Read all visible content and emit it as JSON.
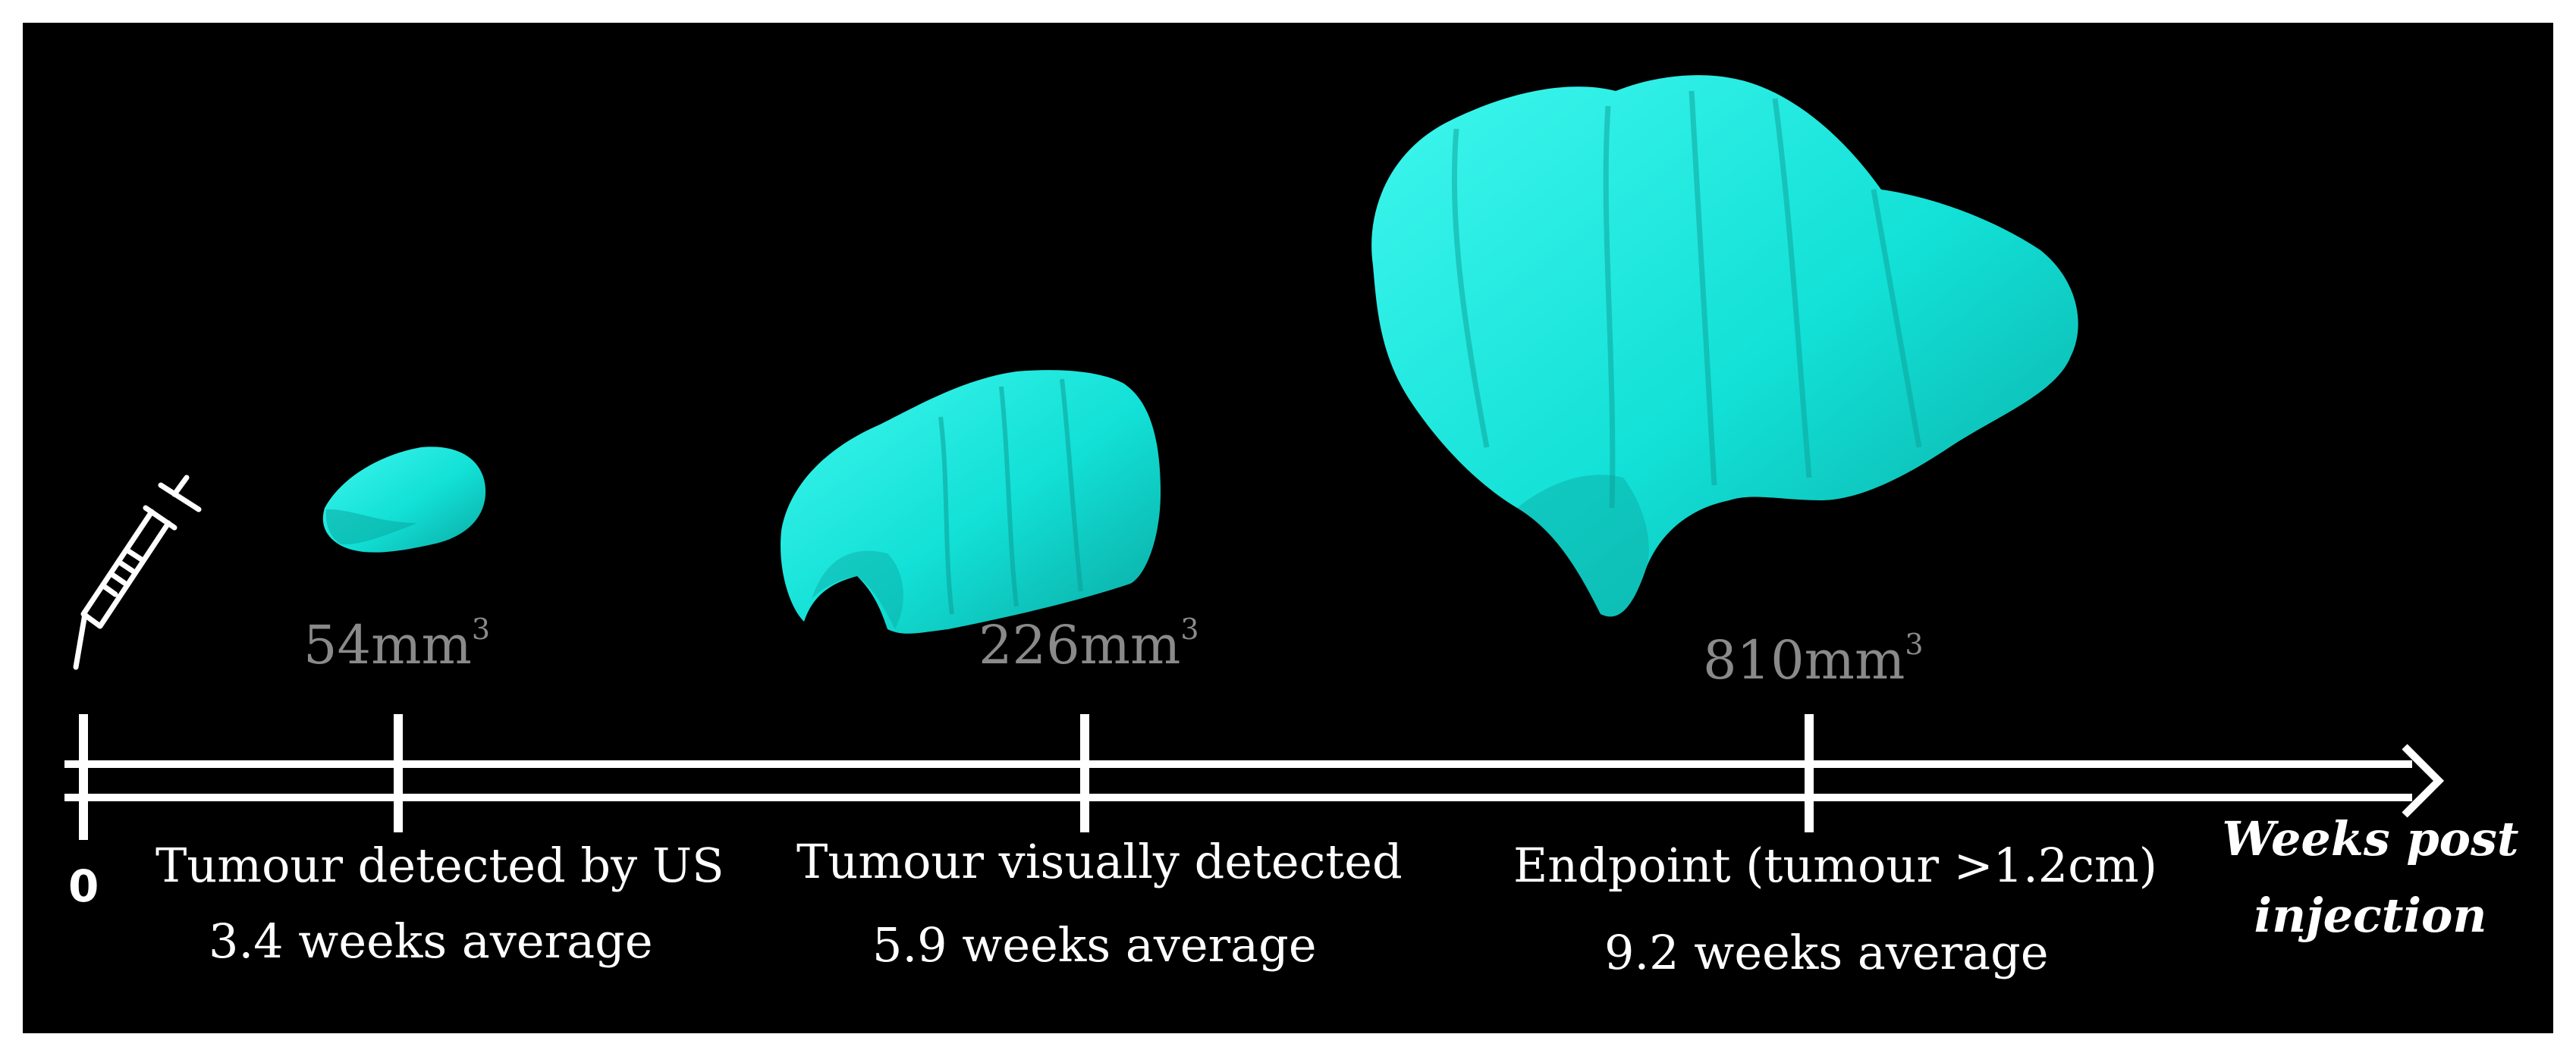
{
  "timeline": {
    "origin_label": "0",
    "axis_label_line1": "Weeks post",
    "axis_label_line2": "injection"
  },
  "stages": [
    {
      "volume": "54mm",
      "volume_sup": "3",
      "event": "Tumour detected by US",
      "timing": "3.4 weeks average"
    },
    {
      "volume": "226mm",
      "volume_sup": "3",
      "event": "Tumour visually detected",
      "timing": "5.9 weeks average"
    },
    {
      "volume": "810mm",
      "volume_sup": "3",
      "event": "Endpoint (tumour >1.2cm)",
      "timing": "9.2 weeks average"
    }
  ],
  "colors": {
    "background": "#000000",
    "tumour": "#18e6dc",
    "timeline": "#ffffff",
    "volume_text": "#8a8a8a"
  },
  "icons": {
    "start": "syringe-icon"
  }
}
